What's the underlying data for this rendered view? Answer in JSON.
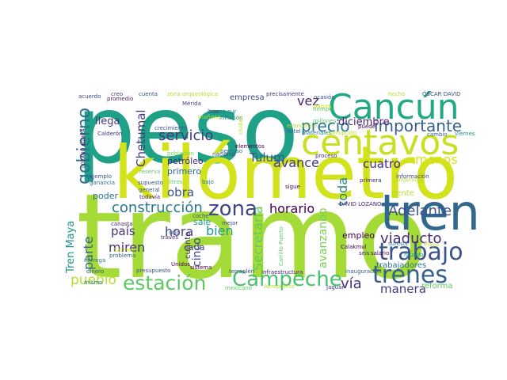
{
  "word_cloud": {
    "words": [
      {
        "text": "tramo",
        "color": "#a5db36"
      },
      {
        "text": "peso",
        "color": "#1fa187"
      },
      {
        "text": "kilómetro",
        "color": "#d2e21b"
      },
      {
        "text": "Cancún",
        "color": "#22a884"
      },
      {
        "text": "centavos",
        "color": "#c8e020"
      },
      {
        "text": "tren",
        "color": "#31688e"
      },
      {
        "text": "trabajo",
        "color": "#3b528b"
      },
      {
        "text": "trenes",
        "color": "#355f8d"
      },
      {
        "text": "Campeche",
        "color": "#4ac16d"
      },
      {
        "text": "estación",
        "color": "#5ec962"
      },
      {
        "text": "gobierno",
        "color": "#2c728e"
      },
      {
        "text": "zona",
        "color": "#414487"
      },
      {
        "text": "importante",
        "color": "#355f8d"
      },
      {
        "text": "precio",
        "color": "#2a788e"
      },
      {
        "text": "viaducto",
        "color": "#482878"
      },
      {
        "text": "Adelante",
        "color": "#3b528b"
      },
      {
        "text": "construcción",
        "color": "#2a788e"
      },
      {
        "text": "servicio",
        "color": "#443983"
      },
      {
        "text": "pueblo",
        "color": "#b5de2b"
      },
      {
        "text": "Secretaría",
        "color": "#5ec962"
      },
      {
        "text": "vía",
        "color": "#46337e"
      },
      {
        "text": "manera",
        "color": "#433e85"
      },
      {
        "text": "horario",
        "color": "#440154"
      },
      {
        "text": "avanzando",
        "color": "#7ad151"
      },
      {
        "text": "menos",
        "color": "#d8e219"
      },
      {
        "text": "cuatro",
        "color": "#482878"
      },
      {
        "text": "avance",
        "color": "#443983"
      },
      {
        "text": "Tulum",
        "color": "#38588c"
      },
      {
        "text": "toda",
        "color": "#26828e"
      },
      {
        "text": "vez",
        "color": "#482475"
      },
      {
        "text": "hora",
        "color": "#404688"
      },
      {
        "text": "bien",
        "color": "#1f9a8a"
      },
      {
        "text": "país",
        "color": "#46337e"
      },
      {
        "text": "miren",
        "color": "#46337e"
      },
      {
        "text": "parte",
        "color": "#32648e"
      },
      {
        "text": "obra",
        "color": "#3b528b"
      },
      {
        "text": "Chetumal",
        "color": "#443983"
      },
      {
        "text": "cinco",
        "color": "#3e4989"
      },
      {
        "text": "Tren Maya",
        "color": "#1f958b"
      },
      {
        "text": "llega",
        "color": "#453781"
      },
      {
        "text": "diciembre",
        "color": "#481f70"
      },
      {
        "text": "empleo",
        "color": "#440154"
      },
      {
        "text": "gente",
        "color": "#b5de2b"
      },
      {
        "text": "reforma",
        "color": "#5ec962"
      },
      {
        "text": "trabajadores",
        "color": "#2c728e"
      },
      {
        "text": "primero",
        "color": "#31688e"
      },
      {
        "text": "empresa",
        "color": "#404688"
      },
      {
        "text": "petróleo",
        "color": "#482878"
      },
      {
        "text": "cada",
        "color": "#424086"
      },
      {
        "text": "cuanto",
        "color": "#472d7b"
      },
      {
        "text": "poder",
        "color": "#2d708e"
      },
      {
        "text": "sale",
        "color": "#1f988b"
      },
      {
        "text": "Calderón",
        "color": "#46327e"
      },
      {
        "text": "primera",
        "color": "#481a6c"
      },
      {
        "text": "Mérida",
        "color": "#433e85"
      },
      {
        "text": "dinero",
        "color": "#3b528b"
      },
      {
        "text": "proceso",
        "color": "#482475"
      },
      {
        "text": "sistema",
        "color": "#440154"
      },
      {
        "text": "terraplén",
        "color": "#3e4989"
      },
      {
        "text": "inflación",
        "color": "#25838e"
      },
      {
        "text": "inauguración",
        "color": "#38588c"
      },
      {
        "text": "seguridad",
        "color": "#b5de2b"
      },
      {
        "text": "mexicano",
        "color": "#5ec962"
      },
      {
        "text": "Aeropuerto",
        "color": "#b5de2b"
      },
      {
        "text": "Jaguar",
        "color": "#453781"
      },
      {
        "text": "precisamente",
        "color": "#443983"
      },
      {
        "text": "acuerdo",
        "color": "#3e4989"
      },
      {
        "text": "cuenta",
        "color": "#3b528b"
      },
      {
        "text": "zona arqueológica",
        "color": "#b5de2b"
      },
      {
        "text": "promedio",
        "color": "#481a6c"
      },
      {
        "text": "ejemplo",
        "color": "#3b528b"
      },
      {
        "text": "ganancia",
        "color": "#2c728e"
      },
      {
        "text": "reserva",
        "color": "#5ec962"
      },
      {
        "text": "supuesto",
        "color": "#3b528b"
      },
      {
        "text": "general",
        "color": "#38588c"
      },
      {
        "text": "todavía",
        "color": "#481f70"
      },
      {
        "text": "población",
        "color": "#7ad151"
      },
      {
        "text": "crecimiento",
        "color": "#3b528b"
      },
      {
        "text": "tramo sur",
        "color": "#2a788e"
      },
      {
        "text": "elementos",
        "color": "#440154"
      },
      {
        "text": "permiso",
        "color": "#2d708e"
      },
      {
        "text": "hotel",
        "color": "#355f8d"
      },
      {
        "text": "materiales",
        "color": "#2a788e"
      },
      {
        "text": "corrupción",
        "color": "#b5de2b"
      },
      {
        "text": "viernes",
        "color": "#1f9a8a"
      },
      {
        "text": "cambio",
        "color": "#355f8d"
      },
      {
        "text": "puede",
        "color": "#440154"
      },
      {
        "text": "millones",
        "color": "#5ec962"
      },
      {
        "text": "países",
        "color": "#d8e219"
      },
      {
        "text": "ÓSCAR DAVID",
        "color": "#3b528b"
      },
      {
        "text": "DAVID LOZANO",
        "color": "#482878"
      },
      {
        "text": "LOZANO AGUILA",
        "color": "#440154"
      },
      {
        "text": "Carrillo Puerto",
        "color": "#5ec962"
      },
      {
        "text": "Infraestructura",
        "color": "#482475"
      },
      {
        "text": "información",
        "color": "#404688"
      },
      {
        "text": "salario",
        "color": "#440154"
      },
      {
        "text": "mundo",
        "color": "#1f9a8a"
      },
      {
        "text": "sureste",
        "color": "#2c728e"
      },
      {
        "text": "Playa",
        "color": "#b5de2b"
      },
      {
        "text": "presupuesto",
        "color": "#3b528b"
      },
      {
        "text": "entrega",
        "color": "#2a788e"
      },
      {
        "text": "problema",
        "color": "#31688e"
      },
      {
        "text": "Unidos",
        "color": "#440154"
      },
      {
        "text": "canasta",
        "color": "#482878"
      },
      {
        "text": "coche",
        "color": "#3b528b"
      },
      {
        "text": "través",
        "color": "#482475"
      },
      {
        "text": "mejor",
        "color": "#404688"
      },
      {
        "text": "bajo",
        "color": "#2a788e"
      },
      {
        "text": "losa",
        "color": "#3e4989"
      },
      {
        "text": "sigue",
        "color": "#440154"
      },
      {
        "text": "seis",
        "color": "#482878"
      },
      {
        "text": "mismo",
        "color": "#2a788e"
      },
      {
        "text": "creo",
        "color": "#404688"
      },
      {
        "text": "hecho",
        "color": "#b5de2b"
      },
      {
        "text": "ocasión",
        "color": "#3b528b"
      },
      {
        "text": "Carmen",
        "color": "#d8e219"
      },
      {
        "text": "Calakmul",
        "color": "#440154"
      },
      {
        "text": "nacional",
        "color": "#3e4989"
      },
      {
        "text": "litros",
        "color": "#5ec962"
      },
      {
        "text": "ciudad",
        "color": "#b5de2b"
      },
      {
        "text": "tiempo",
        "color": "#5ec962"
      },
      {
        "text": "mañana",
        "color": "#b5de2b"
      },
      {
        "text": "sólo",
        "color": "#3b528b"
      },
      {
        "text": "económico",
        "color": "#b5de2b"
      }
    ]
  }
}
